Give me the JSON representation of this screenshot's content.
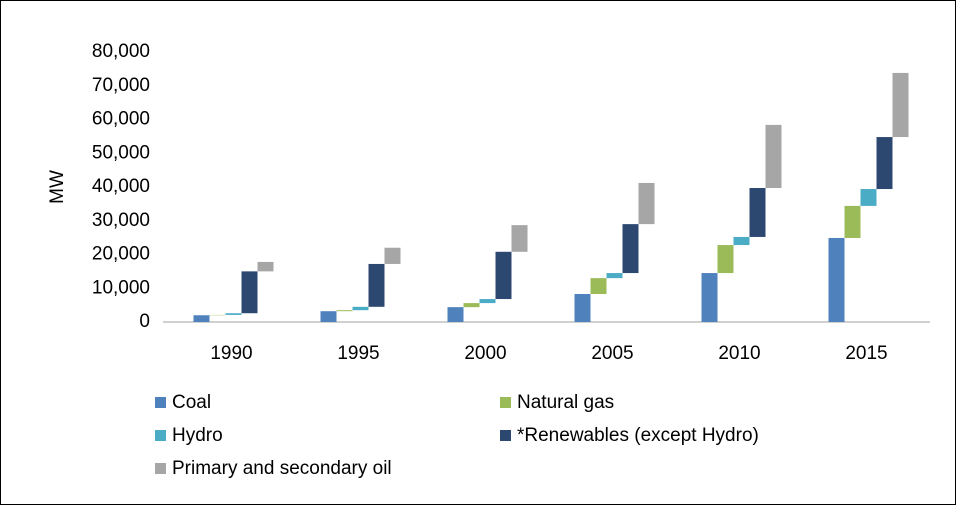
{
  "chart_data": {
    "type": "waterfall",
    "y_label": "MW",
    "categories": [
      "1990",
      "1995",
      "2000",
      "2005",
      "2010",
      "2015"
    ],
    "series": [
      {
        "name": "Coal",
        "color": "#4f81bd",
        "values": [
          2000,
          3200,
          4400,
          8300,
          14500,
          24900
        ]
      },
      {
        "name": "Natural gas",
        "color": "#9bbb59",
        "values": [
          100,
          300,
          1200,
          4700,
          8300,
          9500
        ]
      },
      {
        "name": "Hydro",
        "color": "#4bacc6",
        "values": [
          500,
          1000,
          1200,
          1500,
          2400,
          5000
        ]
      },
      {
        "name": "*Renewables (except Hydro)",
        "color": "#2c4770",
        "values": [
          12400,
          12700,
          14000,
          14500,
          14500,
          15400
        ]
      },
      {
        "name": "Primary and secondary oil",
        "color": "#a6a6a6",
        "values": [
          2800,
          4800,
          7900,
          12200,
          18700,
          19000
        ]
      }
    ],
    "ylim": [
      0,
      80000
    ],
    "yticks": [
      0,
      {
        "value": 10000,
        "label": "10,000"
      },
      {
        "value": 20000,
        "label": "20,000"
      },
      {
        "value": 30000,
        "label": "30,000"
      },
      {
        "value": 40000,
        "label": "40,000"
      },
      {
        "value": 50000,
        "label": "50,000"
      },
      {
        "value": 60000,
        "label": "60,000"
      },
      {
        "value": 70000,
        "label": "70,000"
      },
      {
        "value": 80000,
        "label": "80,000"
      }
    ],
    "legend": "bottom"
  }
}
